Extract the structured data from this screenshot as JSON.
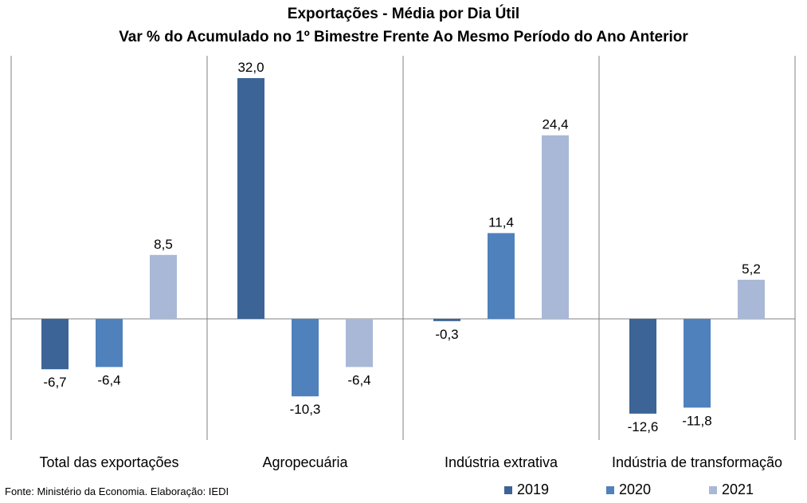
{
  "chart_data": {
    "type": "bar",
    "title": "Exportações - Média por Dia Útil",
    "subtitle": "Var % do Acumulado no 1º Bimestre Frente Ao Mesmo Período do Ano Anterior",
    "categories": [
      "Total das exportações",
      "Agropecuária",
      "Indústria extrativa",
      "Indústria de transformação"
    ],
    "series": [
      {
        "name": "2019",
        "color": "#3c6497",
        "values": [
          -6.7,
          32.0,
          -0.3,
          -12.6
        ],
        "labels": [
          "-6,7",
          "32,0",
          "-0,3",
          "-12,6"
        ]
      },
      {
        "name": "2020",
        "color": "#4f81bd",
        "values": [
          -6.4,
          -10.3,
          11.4,
          -11.8
        ],
        "labels": [
          "-6,4",
          "-10,3",
          "11,4",
          "-11,8"
        ]
      },
      {
        "name": "2021",
        "color": "#a9b8d6",
        "values": [
          8.5,
          -6.4,
          24.4,
          5.2
        ],
        "labels": [
          "8,5",
          "-6,4",
          "24,4",
          "5,2"
        ]
      }
    ],
    "xlabel": "",
    "ylabel": "",
    "axis_visible": false,
    "grid": false,
    "legend": "bottom-right"
  },
  "source": "Fonte: Ministério da Economia. Elaboração: IEDI"
}
